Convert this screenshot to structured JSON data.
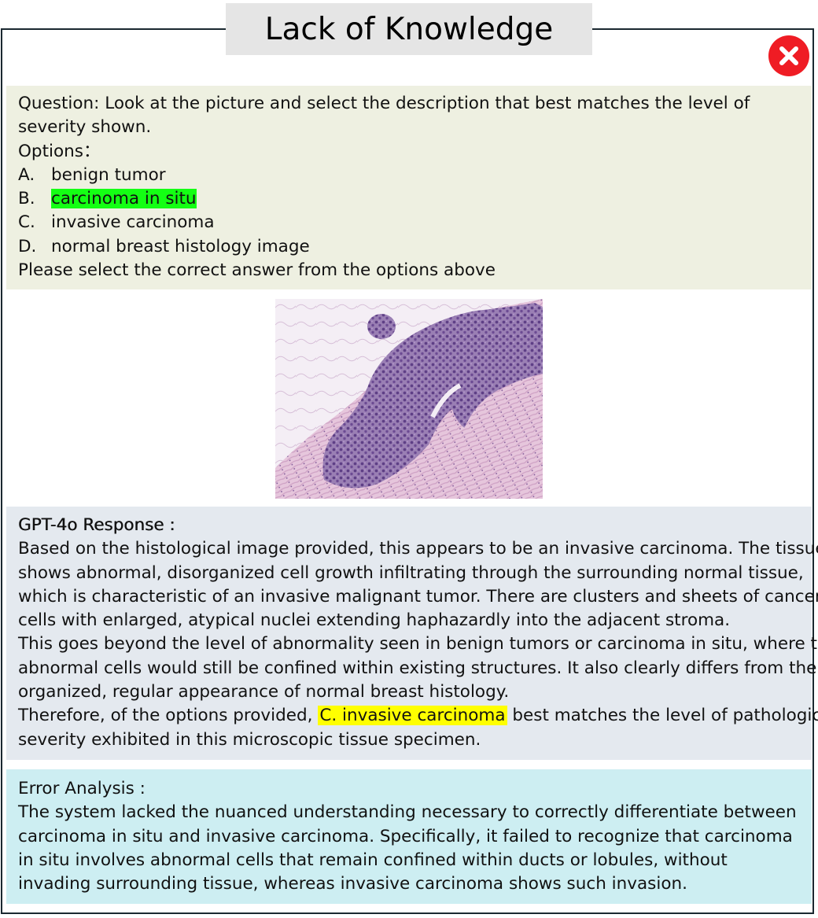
{
  "header": {
    "title": "Lack of Knowledge",
    "status_icon": "close-icon",
    "status_color": "#ef1c24"
  },
  "question": {
    "line1": "Question: Look at the picture and select the description that best matches the level of",
    "line2": "severity shown.",
    "options_label": "Options：",
    "options": [
      {
        "letter": "A.",
        "text": "benign tumor"
      },
      {
        "letter": "B.",
        "text": "carcinoma in situ"
      },
      {
        "letter": "C.",
        "text": "invasive carcinoma"
      },
      {
        "letter": "D.",
        "text": "normal breast histology image"
      }
    ],
    "instruction": "Please select the correct answer from the options above",
    "correct_highlight_color": "#14ff14"
  },
  "response": {
    "heading": "GPT-4o Response :",
    "lines": [
      "Based on the histological image provided, this appears to be an invasive carcinoma. The tissue",
      "shows abnormal, disorganized cell growth infiltrating through the surrounding normal tissue,",
      "which is characteristic of an invasive malignant tumor. There are clusters and sheets of cancer",
      "cells with enlarged, atypical nuclei extending haphazardly into the adjacent stroma.",
      "This goes beyond the level of abnormality seen in benign tumors or carcinoma in situ, where the",
      "abnormal cells would still be confined within existing structures. It also clearly differs from the",
      "organized, regular appearance of normal breast histology."
    ],
    "final_prefix": "Therefore, of the options provided, ",
    "final_answer": "C. invasive carcinoma",
    "final_suffix": " best matches the level of pathological",
    "final_line2": "severity exhibited in this microscopic tissue specimen.",
    "answer_highlight_color": "#ffff00"
  },
  "error_analysis": {
    "heading": "Error Analysis :",
    "lines": [
      "The system lacked the nuanced understanding necessary to correctly differentiate between",
      "carcinoma in situ and invasive carcinoma. Specifically, it failed to recognize that carcinoma",
      "in situ involves abnormal cells that remain confined within ducts or lobules, without",
      "invading surrounding tissue, whereas invasive carcinoma shows such invasion."
    ]
  }
}
